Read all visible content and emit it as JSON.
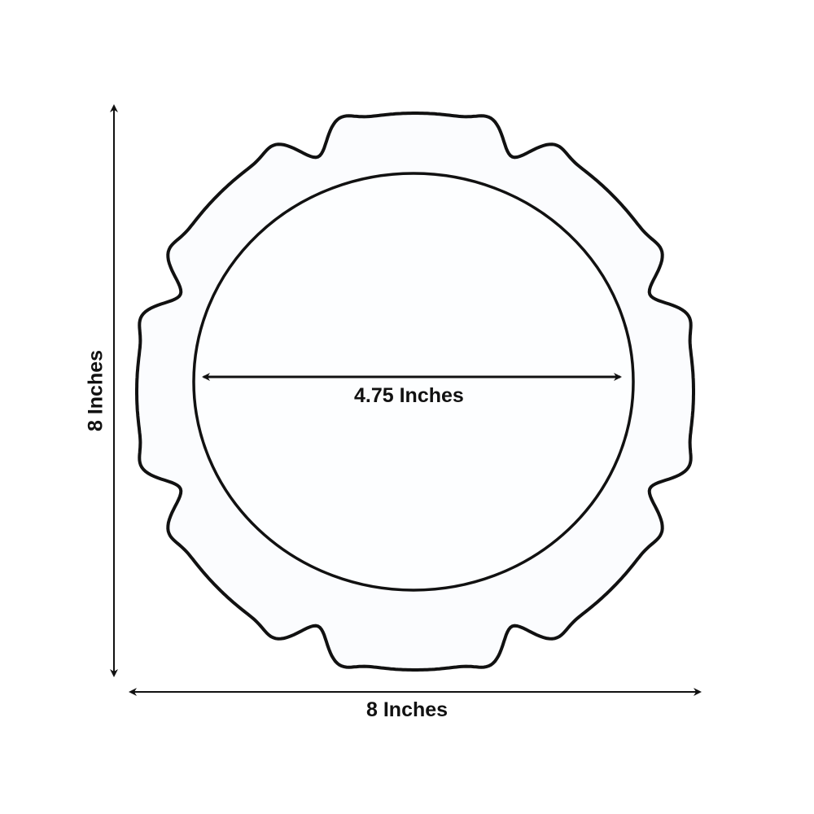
{
  "labels": {
    "inner_diameter": "4.75 Inches",
    "width": "8 Inches",
    "height": "8 Inches"
  },
  "colors": {
    "outline": "#111111",
    "plate_fill": "#fbfcfe",
    "background": "#ffffff"
  }
}
